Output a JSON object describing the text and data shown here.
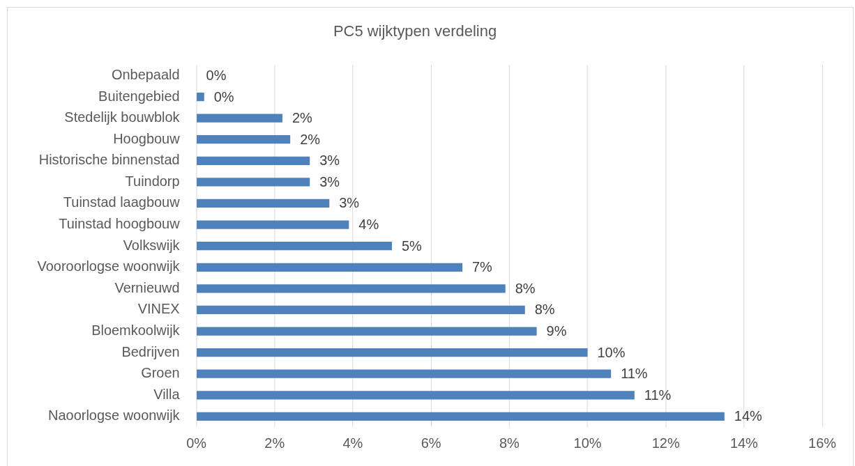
{
  "chart_data": {
    "type": "bar",
    "orientation": "horizontal",
    "title": "PC5 wijktypen verdeling",
    "categories": [
      "Onbepaald",
      "Buitengebied",
      "Stedelijk bouwblok",
      "Hoogbouw",
      "Historische binnenstad",
      "Tuindorp",
      "Tuinstad laagbouw",
      "Tuinstad hoogbouw",
      "Volkswijk",
      "Vooroorlogse woonwijk",
      "Vernieuwd",
      "VINEX",
      "Bloemkoolwijk",
      "Bedrijven",
      "Groen",
      "Villa",
      "Naoorlogse woonwijk"
    ],
    "values": [
      0,
      0.2,
      2.2,
      2.4,
      2.9,
      2.9,
      3.4,
      3.9,
      5.0,
      6.8,
      7.9,
      8.4,
      8.7,
      10.0,
      10.6,
      11.2,
      13.5
    ],
    "value_labels": [
      "0%",
      "0%",
      "2%",
      "2%",
      "3%",
      "3%",
      "3%",
      "4%",
      "5%",
      "7%",
      "8%",
      "8%",
      "9%",
      "10%",
      "11%",
      "11%",
      "14%"
    ],
    "color": "#4f81bd",
    "xlim": [
      0,
      16
    ],
    "xticks": [
      {
        "value": 0,
        "label": "0%"
      },
      {
        "value": 2,
        "label": "2%"
      },
      {
        "value": 4,
        "label": "4%"
      },
      {
        "value": 6,
        "label": "6%"
      },
      {
        "value": 8,
        "label": "8%"
      },
      {
        "value": 10,
        "label": "10%"
      },
      {
        "value": 12,
        "label": "12%"
      },
      {
        "value": 14,
        "label": "14%"
      },
      {
        "value": 16,
        "label": "16%"
      }
    ],
    "grid": "x"
  }
}
